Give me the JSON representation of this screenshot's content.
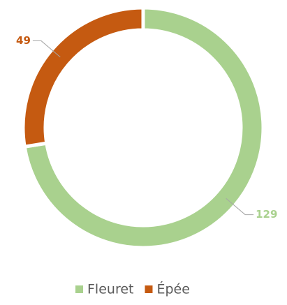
{
  "chart_data": {
    "type": "donut",
    "categories": [
      "Fleuret",
      "Épée"
    ],
    "values": [
      129,
      49
    ],
    "colors": [
      "#a9d18e",
      "#c55a11"
    ],
    "legend": "bottom"
  }
}
